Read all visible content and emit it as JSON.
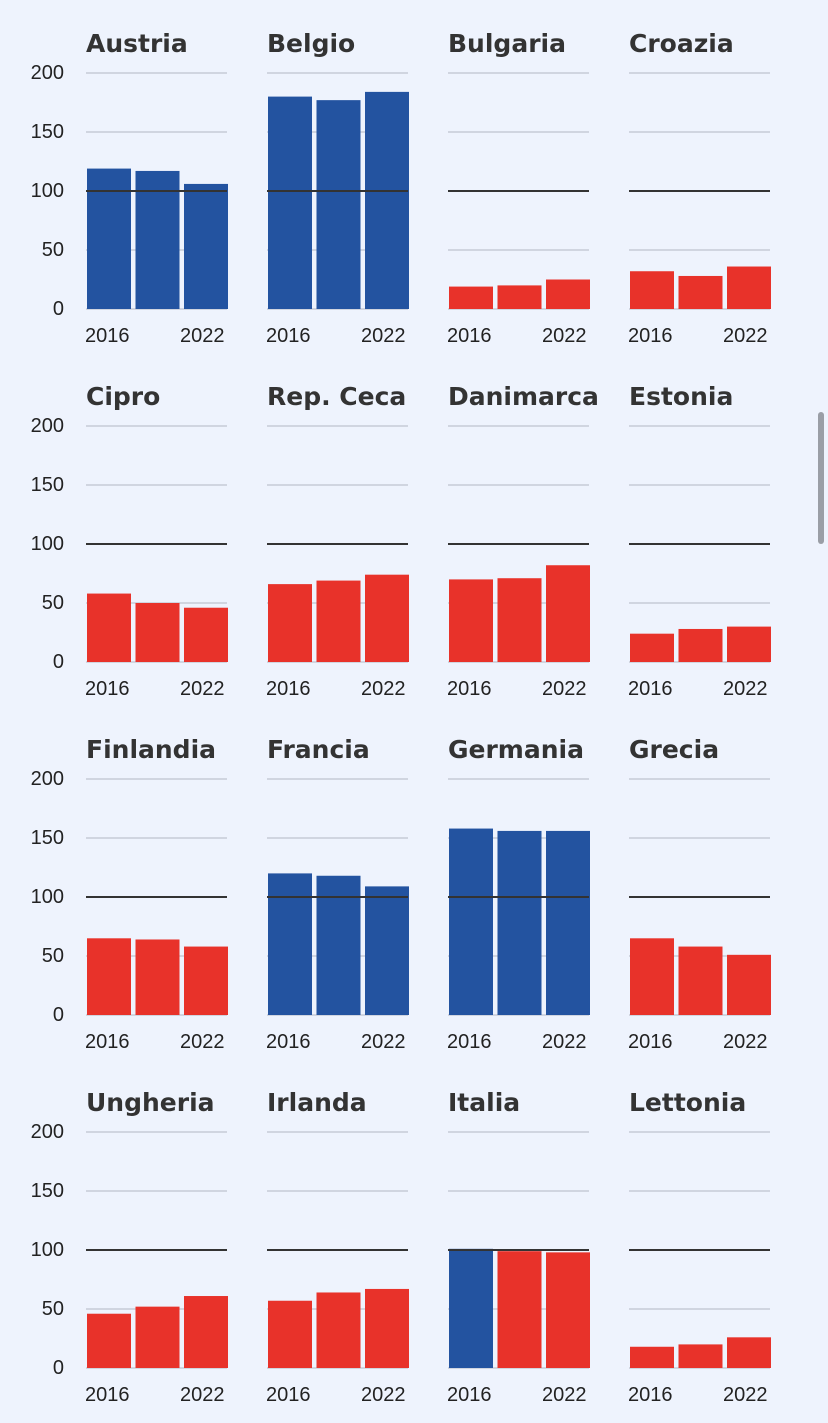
{
  "colors": {
    "above": "#2353a0",
    "below": "#e8322a",
    "gridline": "#c5cbd6",
    "reference": "#333333"
  },
  "chart_data": {
    "type": "bar",
    "layout": "small-multiples",
    "reference_value": 100,
    "ylim": [
      0,
      200
    ],
    "yticks": [
      "0",
      "50",
      "100",
      "150",
      "200"
    ],
    "x": [
      "2016",
      "2019",
      "2022"
    ],
    "xtick_labels": [
      "2016",
      "2022"
    ],
    "grid": true,
    "panels": [
      {
        "title": "Austria",
        "values": [
          119,
          117,
          106
        ]
      },
      {
        "title": "Belgio",
        "values": [
          180,
          177,
          184
        ]
      },
      {
        "title": "Bulgaria",
        "values": [
          19,
          20,
          25
        ]
      },
      {
        "title": "Croazia",
        "values": [
          32,
          28,
          36
        ]
      },
      {
        "title": "Cipro",
        "values": [
          58,
          50,
          46
        ]
      },
      {
        "title": "Rep. Ceca",
        "values": [
          66,
          69,
          74
        ]
      },
      {
        "title": "Danimarca",
        "values": [
          70,
          71,
          82
        ]
      },
      {
        "title": "Estonia",
        "values": [
          24,
          28,
          30
        ]
      },
      {
        "title": "Finlandia",
        "values": [
          65,
          64,
          58
        ]
      },
      {
        "title": "Francia",
        "values": [
          120,
          118,
          109
        ]
      },
      {
        "title": "Germania",
        "values": [
          158,
          156,
          156
        ]
      },
      {
        "title": "Grecia",
        "values": [
          65,
          58,
          51
        ]
      },
      {
        "title": "Ungheria",
        "values": [
          46,
          52,
          61
        ]
      },
      {
        "title": "Irlanda",
        "values": [
          57,
          64,
          67
        ]
      },
      {
        "title": "Italia",
        "values": [
          101,
          99,
          98
        ]
      },
      {
        "title": "Lettonia",
        "values": [
          18,
          20,
          26
        ]
      }
    ]
  }
}
